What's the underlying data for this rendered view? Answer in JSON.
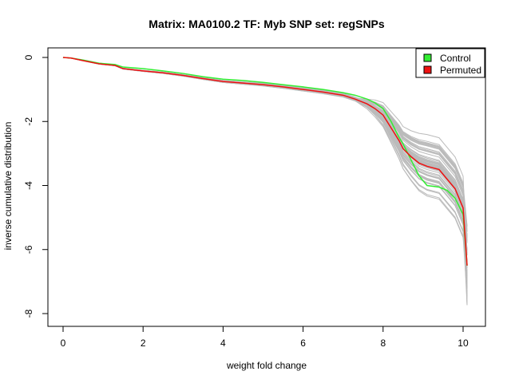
{
  "chart_data": {
    "type": "line",
    "title": "Matrix: MA0100.2 TF: Myb SNP set: regSNPs",
    "xlabel": "weight fold change",
    "ylabel": "inverse cumulative distribution",
    "xlim": [
      0,
      10.1
    ],
    "ylim": [
      -8,
      0
    ],
    "xticks": [
      0,
      2,
      4,
      6,
      8,
      10
    ],
    "yticks": [
      0,
      -2,
      -4,
      -6,
      -8
    ],
    "grid": false,
    "legend": {
      "position": "top-right",
      "entries": [
        "Control",
        "Permuted"
      ]
    },
    "series": [
      {
        "name": "Control",
        "color": "#33ee33",
        "x": [
          0,
          0.2,
          0.5,
          0.9,
          1.3,
          1.5,
          2.0,
          2.5,
          3.0,
          3.5,
          4.0,
          4.5,
          5.0,
          5.5,
          6.0,
          6.5,
          7.0,
          7.3,
          7.6,
          7.8,
          8.0,
          8.2,
          8.4,
          8.5,
          8.7,
          8.9,
          9.1,
          9.4,
          9.6,
          9.8,
          10.0,
          10.1
        ],
        "y": [
          0,
          -0.02,
          -0.08,
          -0.18,
          -0.22,
          -0.3,
          -0.35,
          -0.42,
          -0.5,
          -0.6,
          -0.68,
          -0.72,
          -0.78,
          -0.85,
          -0.92,
          -1.0,
          -1.1,
          -1.18,
          -1.3,
          -1.42,
          -1.6,
          -2.0,
          -2.5,
          -2.7,
          -3.2,
          -3.7,
          -4.0,
          -4.05,
          -4.15,
          -4.4,
          -4.9,
          -6.5
        ]
      },
      {
        "name": "Permuted",
        "color": "#ee1111",
        "x": [
          0,
          0.2,
          0.5,
          0.9,
          1.3,
          1.5,
          2.0,
          2.5,
          3.0,
          3.5,
          4.0,
          4.5,
          5.0,
          5.5,
          6.0,
          6.5,
          7.0,
          7.3,
          7.6,
          7.8,
          8.0,
          8.2,
          8.4,
          8.5,
          8.7,
          8.9,
          9.1,
          9.4,
          9.6,
          9.8,
          10.0,
          10.1
        ],
        "y": [
          0,
          -0.02,
          -0.1,
          -0.2,
          -0.25,
          -0.35,
          -0.42,
          -0.48,
          -0.56,
          -0.66,
          -0.75,
          -0.8,
          -0.85,
          -0.92,
          -1.0,
          -1.08,
          -1.18,
          -1.3,
          -1.45,
          -1.6,
          -1.8,
          -2.2,
          -2.6,
          -2.85,
          -3.1,
          -3.3,
          -3.4,
          -3.5,
          -3.8,
          -4.1,
          -4.7,
          -6.5
        ]
      }
    ],
    "background_lines": {
      "color": "#bbbbbb",
      "count": 60
    }
  }
}
